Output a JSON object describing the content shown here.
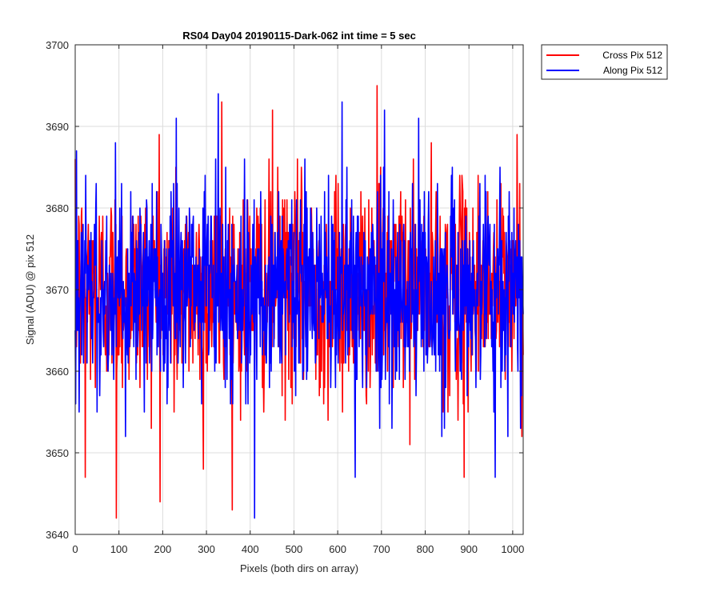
{
  "chart_data": {
    "type": "line",
    "title": "RS04 Day04 20190115-Dark-062 int time = 5 sec",
    "xlabel": "Pixels (both dirs on array)",
    "ylabel": "Signal (ADU) @ pix 512",
    "xlim": [
      0,
      1024
    ],
    "ylim": [
      3640,
      3700
    ],
    "xticks": [
      0,
      100,
      200,
      300,
      400,
      500,
      600,
      700,
      800,
      900,
      1000
    ],
    "yticks": [
      3640,
      3650,
      3660,
      3670,
      3680,
      3690,
      3700
    ],
    "grid": true,
    "legend_position": "outside-top-right",
    "mean_level": 3670,
    "series": [
      {
        "name": "Cross Pix 512",
        "color": "#ff0000",
        "seed": 12345,
        "notable_points": [
          [
            0,
            3686
          ],
          [
            23,
            3647
          ],
          [
            94,
            3642
          ],
          [
            192,
            3689
          ],
          [
            226,
            3655
          ],
          [
            293,
            3648
          ],
          [
            335,
            3693
          ],
          [
            451,
            3692
          ],
          [
            690,
            3695
          ],
          [
            889,
            3647
          ],
          [
            1010,
            3689
          ]
        ]
      },
      {
        "name": "Along Pix 512",
        "color": "#0000ff",
        "seed": 98765,
        "notable_points": [
          [
            3,
            3687
          ],
          [
            327,
            3694
          ],
          [
            410,
            3642
          ],
          [
            640,
            3647
          ],
          [
            785,
            3691
          ],
          [
            960,
            3647
          ],
          [
            1020,
            3657
          ]
        ]
      }
    ]
  }
}
